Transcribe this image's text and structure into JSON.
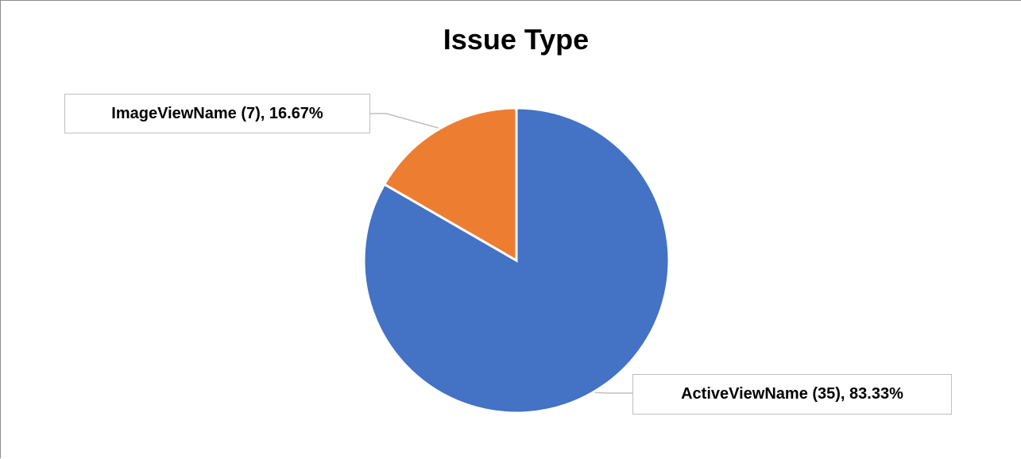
{
  "chart_data": {
    "type": "pie",
    "title": "Issue Type",
    "slices": [
      {
        "label": "ActiveViewName",
        "value": 35,
        "percent": "83.33%",
        "display": "ActiveViewName (35), 83.33%",
        "color": "#4472c4"
      },
      {
        "label": "ImageViewName",
        "value": 7,
        "percent": "16.67%",
        "display": "ImageViewName (7), 16.67%",
        "color": "#ed7d31"
      }
    ],
    "start_angle_deg": 0,
    "direction": "clockwise",
    "legend": "none",
    "data_labels": "callouts"
  }
}
